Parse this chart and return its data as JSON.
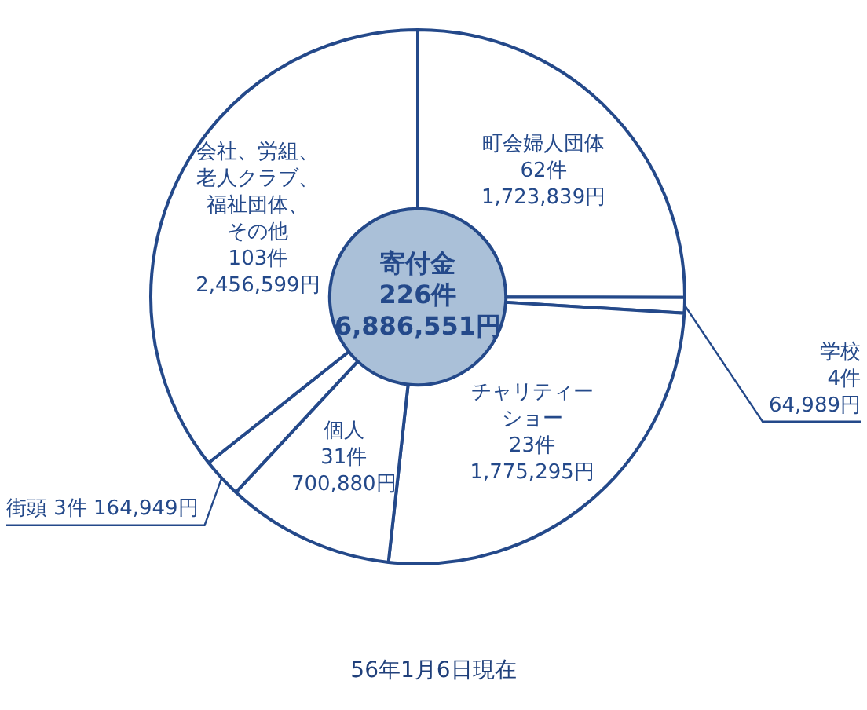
{
  "chart_data": {
    "type": "donut",
    "title": "寄付金",
    "subtitle": "226件\n6,886,551円",
    "categories": [
      "町会婦人団体",
      "学校",
      "チャリティーショー",
      "個人",
      "街頭",
      "会社、労組、老人クラブ、福祉団体、その他"
    ],
    "values": [
      1723839,
      64989,
      1775295,
      700880,
      164949,
      2456599
    ],
    "value_labels": [
      "62件\n1,723,839円",
      "4件\n64,989円",
      "23件\n1,775,295円",
      "31件\n700,880円",
      "3件\n164,949円",
      "103件\n2,456,599円"
    ],
    "colors": [
      "#ffffff",
      "#ffffff",
      "#ffffff",
      "#ffffff",
      "#ffffff",
      "#ffffff"
    ],
    "legend": false,
    "annotations": [
      "56年1月6日現在"
    ]
  }
}
